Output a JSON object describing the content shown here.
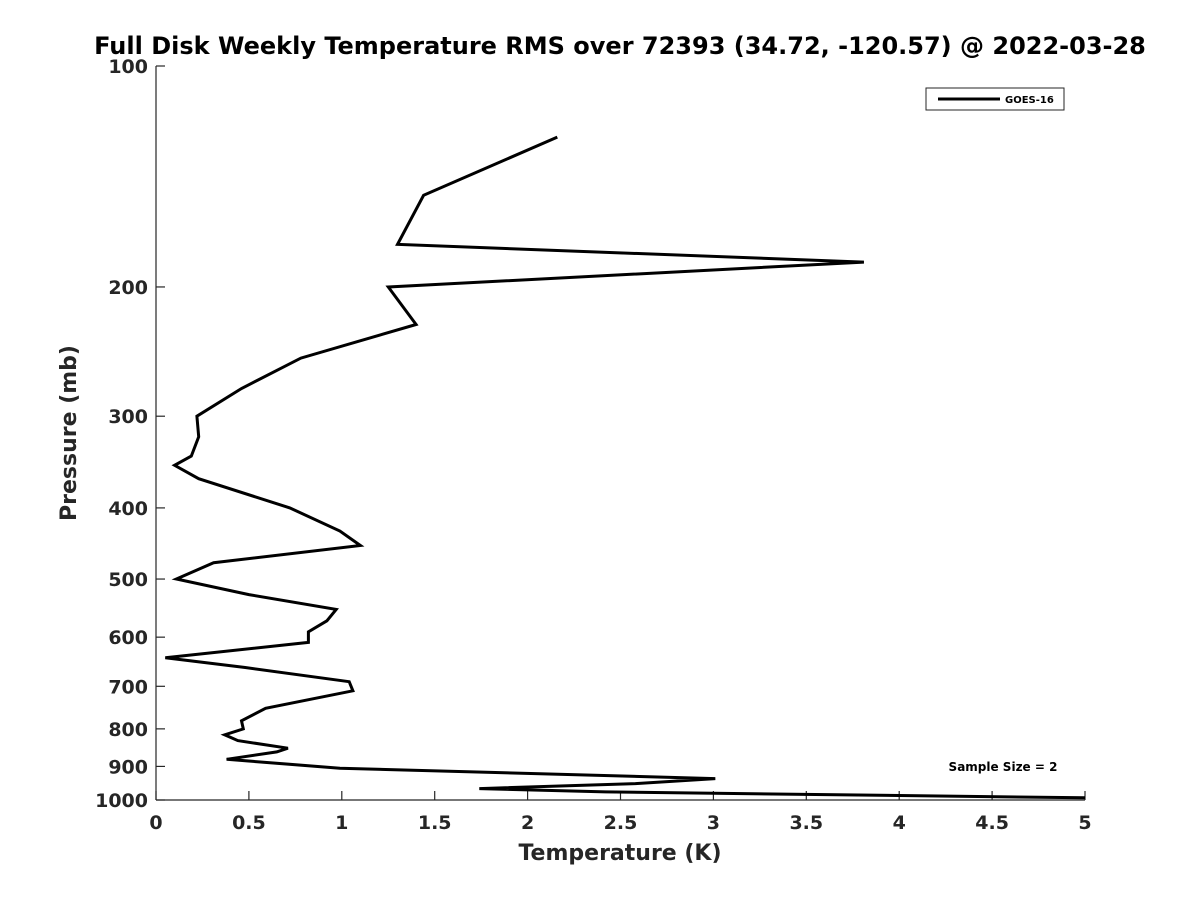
{
  "chart_data": {
    "type": "line",
    "title": "Full Disk Weekly Temperature RMS over 72393 (34.72, -120.57) @ 2022-03-28",
    "xlabel": "Temperature (K)",
    "ylabel": "Pressure (mb)",
    "xlim": [
      0,
      5
    ],
    "ylim": [
      100,
      1000
    ],
    "y_scale": "log",
    "y_reversed": true,
    "x_ticks": [
      "0",
      "0.5",
      "1",
      "1.5",
      "2",
      "2.5",
      "3",
      "3.5",
      "4",
      "4.5",
      "5"
    ],
    "y_ticks": [
      "100",
      "200",
      "300",
      "400",
      "500",
      "600",
      "700",
      "800",
      "900",
      "1000"
    ],
    "grid": false,
    "legend_position": "top-right",
    "series": [
      {
        "name": "GOES-16",
        "color": "#000000",
        "x": [
          2.16,
          1.44,
          1.3,
          3.81,
          1.25,
          1.4,
          0.78,
          0.46,
          0.22,
          0.23,
          0.19,
          0.1,
          0.23,
          0.72,
          0.99,
          1.1,
          0.31,
          0.11,
          0.5,
          0.97,
          0.92,
          0.82,
          0.82,
          0.05,
          0.48,
          1.04,
          1.06,
          0.59,
          0.46,
          0.47,
          0.37,
          0.44,
          0.71,
          0.65,
          0.38,
          0.99,
          3.01,
          2.58,
          1.74,
          2.42,
          5.0
        ],
        "y": [
          125,
          150,
          175,
          185,
          200,
          225,
          250,
          275,
          300,
          320,
          340,
          350,
          365,
          400,
          430,
          450,
          475,
          500,
          525,
          550,
          570,
          590,
          610,
          640,
          660,
          690,
          710,
          750,
          780,
          800,
          815,
          830,
          850,
          860,
          880,
          905,
          935,
          950,
          965,
          975,
          993
        ]
      }
    ],
    "annotations": [
      "Sample Size = 2"
    ]
  }
}
